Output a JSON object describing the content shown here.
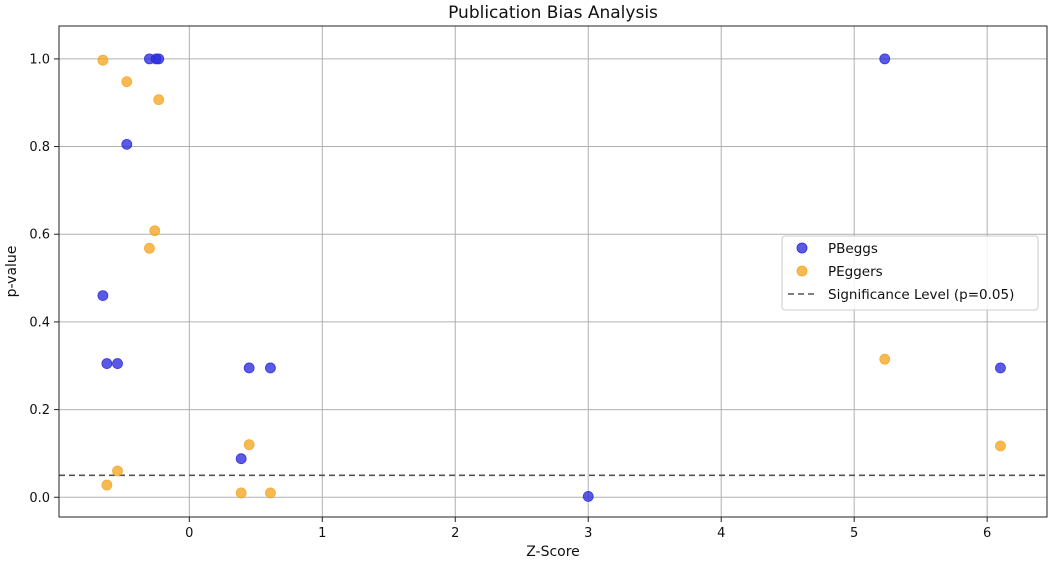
{
  "chart_data": {
    "type": "scatter",
    "title": "Publication Bias Analysis",
    "xlabel": "Z-Score",
    "ylabel": "p-value",
    "xlim": [
      -0.98,
      6.45
    ],
    "ylim": [
      -0.045,
      1.075
    ],
    "xticks": [
      0,
      1,
      2,
      3,
      4,
      5,
      6
    ],
    "yticks": [
      0.0,
      0.2,
      0.4,
      0.6,
      0.8,
      1.0
    ],
    "xtick_labels": [
      "0",
      "1",
      "2",
      "3",
      "4",
      "5",
      "6"
    ],
    "ytick_labels": [
      "0.0",
      "0.2",
      "0.4",
      "0.6",
      "0.8",
      "1.0"
    ],
    "grid": true,
    "legend_position": "center-right",
    "reference_line": {
      "y": 0.05,
      "label": "Significance Level (p=0.05)",
      "color": "#555555",
      "style": "dashed"
    },
    "series": [
      {
        "name": "PBeggs",
        "color": "#2b2bde",
        "points": [
          {
            "x": -0.65,
            "y": 0.46
          },
          {
            "x": -0.62,
            "y": 0.305
          },
          {
            "x": -0.54,
            "y": 0.305
          },
          {
            "x": -0.47,
            "y": 0.805
          },
          {
            "x": -0.3,
            "y": 1.0
          },
          {
            "x": -0.25,
            "y": 1.0
          },
          {
            "x": -0.23,
            "y": 1.0
          },
          {
            "x": 0.39,
            "y": 0.088
          },
          {
            "x": 0.45,
            "y": 0.295
          },
          {
            "x": 0.61,
            "y": 0.295
          },
          {
            "x": 3.0,
            "y": 0.002
          },
          {
            "x": 5.23,
            "y": 1.0
          },
          {
            "x": 6.1,
            "y": 0.295
          }
        ]
      },
      {
        "name": "PEggers",
        "color": "#f5a623",
        "points": [
          {
            "x": -0.65,
            "y": 0.997
          },
          {
            "x": -0.62,
            "y": 0.028
          },
          {
            "x": -0.54,
            "y": 0.06
          },
          {
            "x": -0.47,
            "y": 0.948
          },
          {
            "x": -0.3,
            "y": 0.568
          },
          {
            "x": -0.26,
            "y": 0.608
          },
          {
            "x": -0.23,
            "y": 0.907
          },
          {
            "x": 0.39,
            "y": 0.01
          },
          {
            "x": 0.45,
            "y": 0.12
          },
          {
            "x": 0.61,
            "y": 0.01
          },
          {
            "x": 5.23,
            "y": 0.315
          },
          {
            "x": 6.1,
            "y": 0.117
          }
        ]
      }
    ]
  }
}
